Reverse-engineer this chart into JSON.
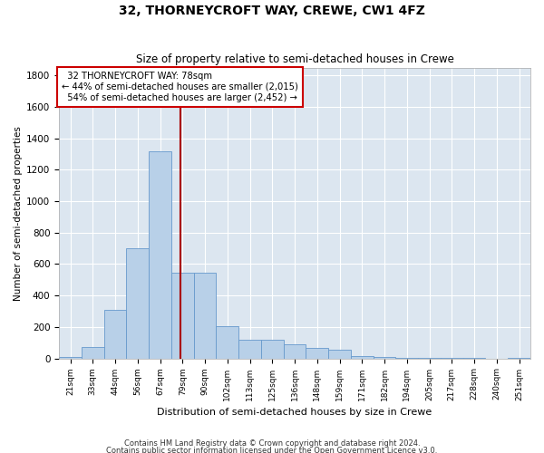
{
  "title": "32, THORNEYCROFT WAY, CREWE, CW1 4FZ",
  "subtitle": "Size of property relative to semi-detached houses in Crewe",
  "xlabel": "Distribution of semi-detached houses by size in Crewe",
  "ylabel": "Number of semi-detached properties",
  "categories": [
    "21sqm",
    "33sqm",
    "44sqm",
    "56sqm",
    "67sqm",
    "79sqm",
    "90sqm",
    "102sqm",
    "113sqm",
    "125sqm",
    "136sqm",
    "148sqm",
    "159sqm",
    "171sqm",
    "182sqm",
    "194sqm",
    "205sqm",
    "217sqm",
    "228sqm",
    "240sqm",
    "251sqm"
  ],
  "values": [
    10,
    70,
    310,
    700,
    1320,
    545,
    545,
    205,
    120,
    120,
    90,
    65,
    55,
    15,
    8,
    4,
    3,
    1,
    1,
    0,
    1
  ],
  "bar_color": "#b8d0e8",
  "bar_edge_color": "#6699cc",
  "bg_color": "#dce6f0",
  "grid_color": "#ffffff",
  "property_label": "32 THORNEYCROFT WAY: 78sqm",
  "pct_smaller": "44%",
  "n_smaller": "2,015",
  "pct_larger": "54%",
  "n_larger": "2,452",
  "vline_color": "#aa0000",
  "ylim": [
    0,
    1850
  ],
  "yticks": [
    0,
    200,
    400,
    600,
    800,
    1000,
    1200,
    1400,
    1600,
    1800
  ],
  "footnote1": "Contains HM Land Registry data © Crown copyright and database right 2024.",
  "footnote2": "Contains public sector information licensed under the Open Government Licence v3.0."
}
